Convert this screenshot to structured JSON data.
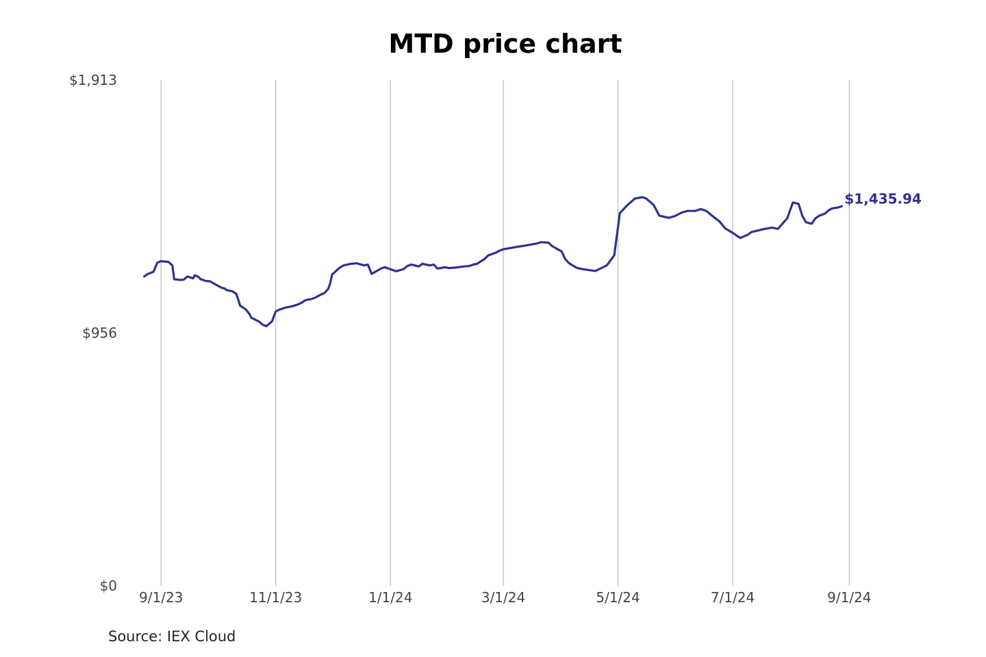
{
  "chart_data": {
    "type": "line",
    "title": "MTD price chart",
    "source": "Source: IEX Cloud",
    "xlabel": "",
    "ylabel": "",
    "ylim": [
      0,
      1913
    ],
    "y_ticks": [
      {
        "value": 1913,
        "label": "$1,913"
      },
      {
        "value": 956,
        "label": "$956"
      },
      {
        "value": 0,
        "label": "$0"
      }
    ],
    "x_ticks": [
      {
        "date": "2023-09-01",
        "label": "9/1/23"
      },
      {
        "date": "2023-11-01",
        "label": "11/1/23"
      },
      {
        "date": "2024-01-01",
        "label": "1/1/24"
      },
      {
        "date": "2024-03-01",
        "label": "3/1/24"
      },
      {
        "date": "2024-05-01",
        "label": "5/1/24"
      },
      {
        "date": "2024-07-01",
        "label": "7/1/24"
      },
      {
        "date": "2024-09-01",
        "label": "9/1/24"
      }
    ],
    "xlim": [
      "2023-08-21",
      "2024-09-30"
    ],
    "grid": "vertical",
    "line_color": "#2e3192",
    "last_value_label": "$1,435.94",
    "series": [
      {
        "name": "Price",
        "points": [
          [
            "2023-08-23",
            1170
          ],
          [
            "2023-08-25",
            1180
          ],
          [
            "2023-08-28",
            1188
          ],
          [
            "2023-08-30",
            1222
          ],
          [
            "2023-09-01",
            1228
          ],
          [
            "2023-09-05",
            1225
          ],
          [
            "2023-09-07",
            1212
          ],
          [
            "2023-09-08",
            1160
          ],
          [
            "2023-09-11",
            1157
          ],
          [
            "2023-09-13",
            1158
          ],
          [
            "2023-09-15",
            1170
          ],
          [
            "2023-09-18",
            1163
          ],
          [
            "2023-09-19",
            1175
          ],
          [
            "2023-09-21",
            1168
          ],
          [
            "2023-09-22",
            1160
          ],
          [
            "2023-09-25",
            1153
          ],
          [
            "2023-09-27",
            1152
          ],
          [
            "2023-09-29",
            1144
          ],
          [
            "2023-10-02",
            1132
          ],
          [
            "2023-10-03",
            1128
          ],
          [
            "2023-10-05",
            1124
          ],
          [
            "2023-10-06",
            1118
          ],
          [
            "2023-10-09",
            1114
          ],
          [
            "2023-10-11",
            1104
          ],
          [
            "2023-10-12",
            1084
          ],
          [
            "2023-10-13",
            1060
          ],
          [
            "2023-10-16",
            1046
          ],
          [
            "2023-10-18",
            1028
          ],
          [
            "2023-10-19",
            1014
          ],
          [
            "2023-10-23",
            1000
          ],
          [
            "2023-10-25",
            988
          ],
          [
            "2023-10-26",
            985
          ],
          [
            "2023-10-27",
            982
          ],
          [
            "2023-10-30",
            1000
          ],
          [
            "2023-11-01",
            1038
          ],
          [
            "2023-11-03",
            1045
          ],
          [
            "2023-11-06",
            1052
          ],
          [
            "2023-11-08",
            1055
          ],
          [
            "2023-11-10",
            1058
          ],
          [
            "2023-11-13",
            1065
          ],
          [
            "2023-11-15",
            1072
          ],
          [
            "2023-11-17",
            1081
          ],
          [
            "2023-11-20",
            1085
          ],
          [
            "2023-11-22",
            1090
          ],
          [
            "2023-11-24",
            1098
          ],
          [
            "2023-11-27",
            1108
          ],
          [
            "2023-11-29",
            1124
          ],
          [
            "2023-11-30",
            1146
          ],
          [
            "2023-12-01",
            1178
          ],
          [
            "2023-12-05",
            1203
          ],
          [
            "2023-12-07",
            1212
          ],
          [
            "2023-12-11",
            1218
          ],
          [
            "2023-12-14",
            1220
          ],
          [
            "2023-12-18",
            1212
          ],
          [
            "2023-12-20",
            1215
          ],
          [
            "2023-12-22",
            1180
          ],
          [
            "2023-12-27",
            1200
          ],
          [
            "2023-12-29",
            1205
          ],
          [
            "2024-01-02",
            1195
          ],
          [
            "2024-01-04",
            1190
          ],
          [
            "2024-01-08",
            1198
          ],
          [
            "2024-01-10",
            1210
          ],
          [
            "2024-01-12",
            1215
          ],
          [
            "2024-01-16",
            1208
          ],
          [
            "2024-01-18",
            1218
          ],
          [
            "2024-01-22",
            1212
          ],
          [
            "2024-01-24",
            1215
          ],
          [
            "2024-01-26",
            1200
          ],
          [
            "2024-01-30",
            1205
          ],
          [
            "2024-02-01",
            1202
          ],
          [
            "2024-02-05",
            1204
          ],
          [
            "2024-02-08",
            1207
          ],
          [
            "2024-02-12",
            1210
          ],
          [
            "2024-02-14",
            1215
          ],
          [
            "2024-02-16",
            1218
          ],
          [
            "2024-02-20",
            1236
          ],
          [
            "2024-02-22",
            1250
          ],
          [
            "2024-02-26",
            1260
          ],
          [
            "2024-02-28",
            1268
          ],
          [
            "2024-03-01",
            1273
          ],
          [
            "2024-03-05",
            1278
          ],
          [
            "2024-03-08",
            1282
          ],
          [
            "2024-03-12",
            1286
          ],
          [
            "2024-03-15",
            1290
          ],
          [
            "2024-03-19",
            1295
          ],
          [
            "2024-03-21",
            1300
          ],
          [
            "2024-03-25",
            1298
          ],
          [
            "2024-03-27",
            1285
          ],
          [
            "2024-04-01",
            1265
          ],
          [
            "2024-04-03",
            1235
          ],
          [
            "2024-04-05",
            1220
          ],
          [
            "2024-04-09",
            1203
          ],
          [
            "2024-04-12",
            1198
          ],
          [
            "2024-04-16",
            1194
          ],
          [
            "2024-04-19",
            1191
          ],
          [
            "2024-04-23",
            1205
          ],
          [
            "2024-04-25",
            1212
          ],
          [
            "2024-04-29",
            1250
          ],
          [
            "2024-05-02",
            1410
          ],
          [
            "2024-05-06",
            1440
          ],
          [
            "2024-05-10",
            1465
          ],
          [
            "2024-05-14",
            1470
          ],
          [
            "2024-05-16",
            1465
          ],
          [
            "2024-05-20",
            1440
          ],
          [
            "2024-05-23",
            1400
          ],
          [
            "2024-05-28",
            1392
          ],
          [
            "2024-05-31",
            1398
          ],
          [
            "2024-06-04",
            1412
          ],
          [
            "2024-06-07",
            1418
          ],
          [
            "2024-06-11",
            1418
          ],
          [
            "2024-06-14",
            1425
          ],
          [
            "2024-06-17",
            1418
          ],
          [
            "2024-06-20",
            1400
          ],
          [
            "2024-06-24",
            1378
          ],
          [
            "2024-06-27",
            1352
          ],
          [
            "2024-07-01",
            1335
          ],
          [
            "2024-07-03",
            1325
          ],
          [
            "2024-07-05",
            1316
          ],
          [
            "2024-07-09",
            1328
          ],
          [
            "2024-07-11",
            1338
          ],
          [
            "2024-07-15",
            1345
          ],
          [
            "2024-07-18",
            1350
          ],
          [
            "2024-07-22",
            1355
          ],
          [
            "2024-07-25",
            1350
          ],
          [
            "2024-07-30",
            1390
          ],
          [
            "2024-08-01",
            1430
          ],
          [
            "2024-08-02",
            1450
          ],
          [
            "2024-08-05",
            1445
          ],
          [
            "2024-08-07",
            1400
          ],
          [
            "2024-08-09",
            1375
          ],
          [
            "2024-08-12",
            1370
          ],
          [
            "2024-08-14",
            1390
          ],
          [
            "2024-08-16",
            1400
          ],
          [
            "2024-08-19",
            1408
          ],
          [
            "2024-08-21",
            1420
          ],
          [
            "2024-08-23",
            1428
          ],
          [
            "2024-08-26",
            1431
          ],
          [
            "2024-08-28",
            1435.94
          ]
        ]
      }
    ]
  }
}
